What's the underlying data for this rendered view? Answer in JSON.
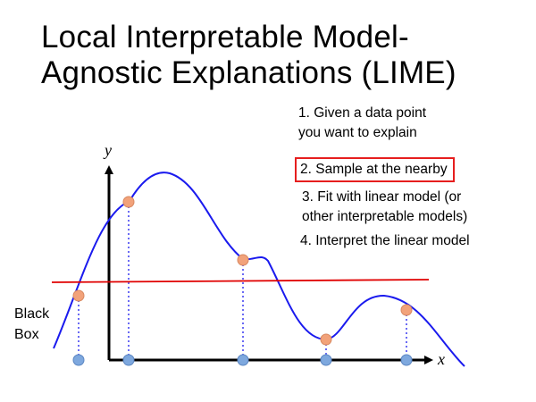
{
  "slide": {
    "title_line1": "Local Interpretable Model-",
    "title_line2": "Agnostic Explanations (LIME)"
  },
  "steps": [
    {
      "line1": "1. Given a data point",
      "line2": "you want to explain"
    },
    {
      "line1": "2. Sample at the nearby",
      "highlighted": true,
      "highlight_color": "#e61e1e"
    },
    {
      "line1": "3. Fit with linear model (or",
      "line2": "other interpretable models)"
    },
    {
      "line1": "4. Interpret the linear model"
    }
  ],
  "diagram": {
    "y_axis_label": "y",
    "x_axis_label": "x",
    "black_box_line1": "Black",
    "black_box_line2": "Box",
    "colors": {
      "curve": "#1a1aee",
      "linear_model": "#e00000",
      "sample_point": "#f2a27a",
      "projection_point": "#7ea8de",
      "axis": "#000000"
    }
  }
}
